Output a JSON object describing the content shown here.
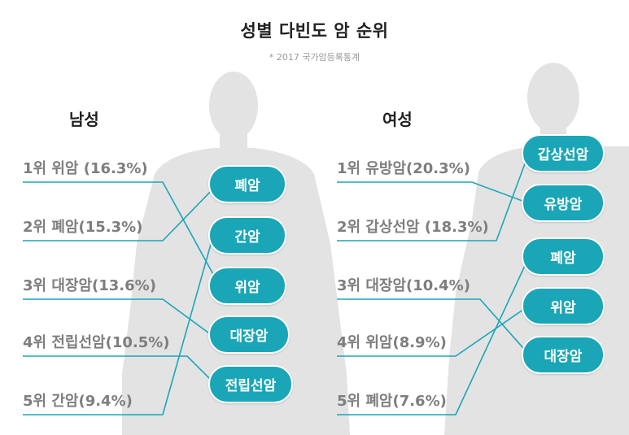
{
  "title": "성별 다빈도 암 순위",
  "subtitle": "* 2017 국가암등록통계",
  "accent_color": "#1aa6b7",
  "silhouette_color": "#e3e3e4",
  "male": {
    "label": "남성",
    "ranks": [
      "1위 위암 (16.3%)",
      "2위 폐암(15.3%)",
      "3위 대장암(13.6%)",
      "4위 전립선암(10.5%)",
      "5위 간암(9.4%)"
    ],
    "pills": [
      "폐암",
      "간암",
      "위암",
      "대장암",
      "전립선암"
    ]
  },
  "female": {
    "label": "여성",
    "ranks": [
      "1위 유방암(20.3%)",
      "2위 갑상선암 (18.3%)",
      "3위 대장암(10.4%)",
      "4위 위암(8.9%)",
      "5위 폐암(7.6%)"
    ],
    "pills": [
      "갑상선암",
      "유방암",
      "폐암",
      "위암",
      "대장암"
    ]
  }
}
